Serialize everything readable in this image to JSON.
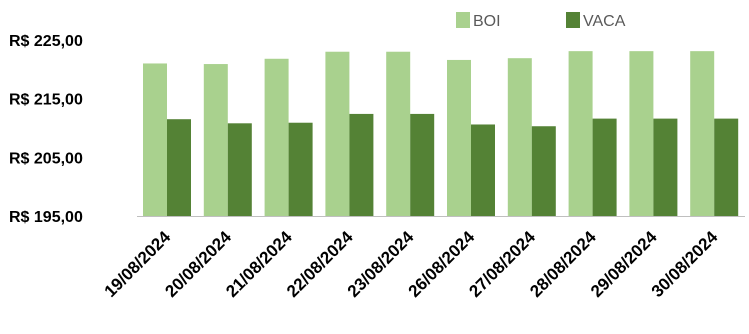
{
  "chart_data": {
    "type": "bar",
    "categories": [
      "19/08/2024",
      "20/08/2024",
      "21/08/2024",
      "22/08/2024",
      "23/08/2024",
      "26/08/2024",
      "27/08/2024",
      "28/08/2024",
      "29/08/2024",
      "30/08/2024"
    ],
    "series": [
      {
        "name": "BOI",
        "color": "#a9d18e",
        "values": [
          221.0,
          220.9,
          221.8,
          223.0,
          223.0,
          221.6,
          221.9,
          223.1,
          223.1,
          223.1
        ]
      },
      {
        "name": "VACA",
        "color": "#548235",
        "values": [
          211.5,
          210.8,
          210.9,
          212.4,
          212.4,
          210.6,
          210.3,
          211.6,
          211.6,
          211.6
        ]
      }
    ],
    "yticks": [
      "R$ 195,00",
      "R$ 205,00",
      "R$ 215,00",
      "R$ 225,00"
    ],
    "ytick_values": [
      195,
      205,
      215,
      225
    ],
    "ylim": [
      195,
      225
    ],
    "legend_position": "top-right",
    "grid": false
  }
}
